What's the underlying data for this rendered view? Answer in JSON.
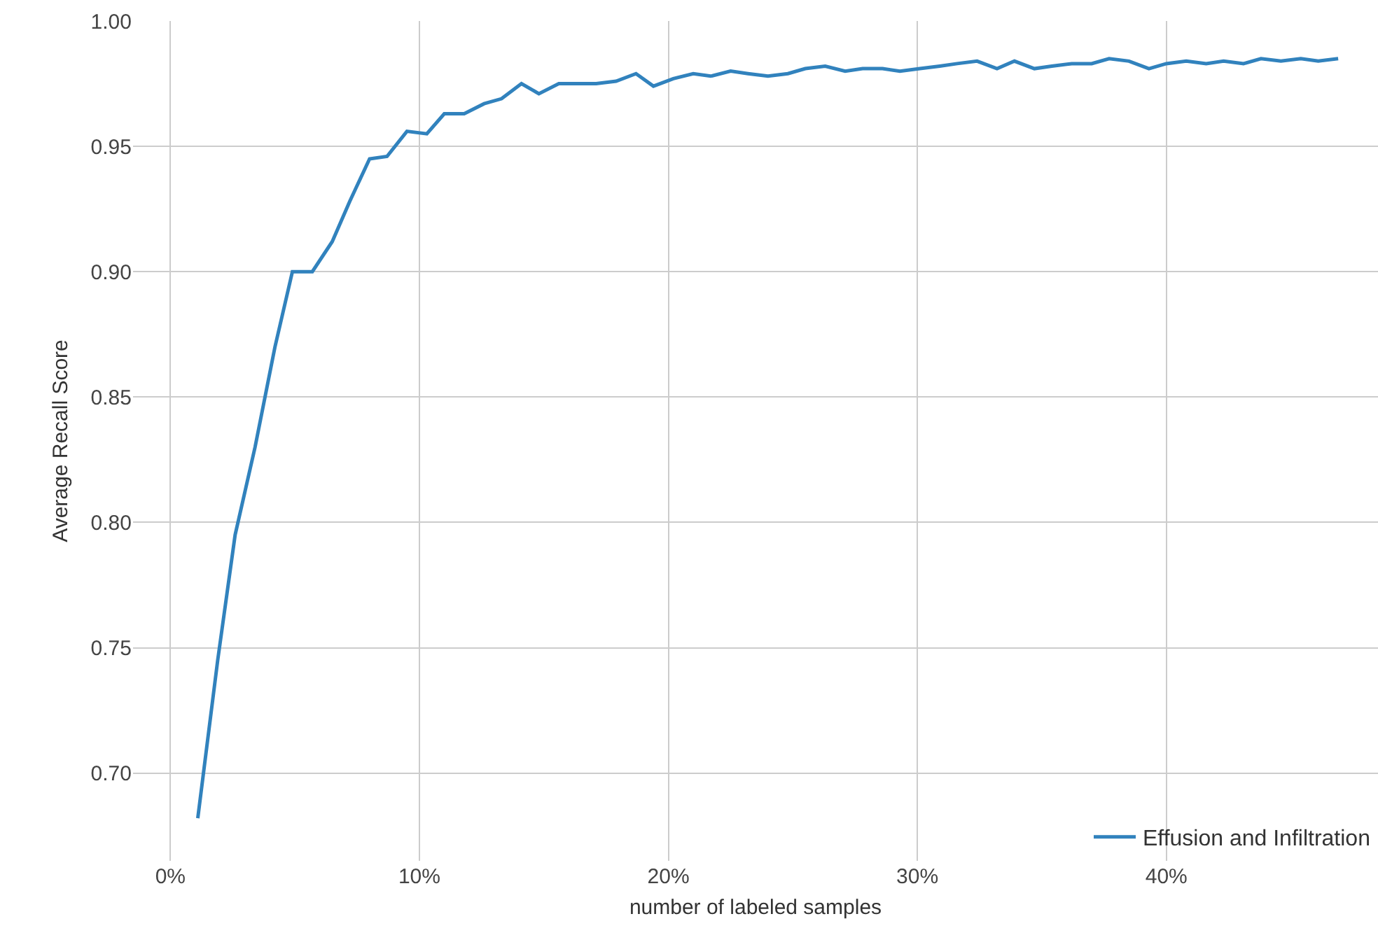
{
  "chart_data": {
    "type": "line",
    "xlabel": "number of labeled samples",
    "ylabel": "Average Recall Score",
    "x": [
      1.1,
      1.9,
      2.6,
      3.4,
      4.2,
      4.9,
      5.7,
      6.5,
      7.2,
      8.0,
      8.7,
      9.5,
      10.3,
      11.0,
      11.8,
      12.6,
      13.3,
      14.1,
      14.8,
      15.6,
      16.4,
      17.1,
      17.9,
      18.7,
      19.4,
      20.2,
      21.0,
      21.7,
      22.5,
      23.2,
      24.0,
      24.8,
      25.5,
      26.3,
      27.1,
      27.8,
      28.6,
      29.3,
      30.1,
      30.9,
      31.6,
      32.4,
      33.2,
      33.9,
      34.7,
      35.4,
      36.2,
      37.0,
      37.7,
      38.5,
      39.3,
      40.0,
      40.8,
      41.6,
      42.3,
      43.1,
      43.8,
      44.6,
      45.4,
      46.1,
      46.9
    ],
    "series": [
      {
        "name": "Effusion and Infiltration",
        "color": "#3182bd",
        "values": [
          0.682,
          0.745,
          0.795,
          0.83,
          0.87,
          0.9,
          0.9,
          0.912,
          0.928,
          0.945,
          0.946,
          0.956,
          0.955,
          0.963,
          0.963,
          0.967,
          0.969,
          0.975,
          0.971,
          0.975,
          0.975,
          0.975,
          0.976,
          0.979,
          0.974,
          0.977,
          0.979,
          0.978,
          0.98,
          0.979,
          0.978,
          0.979,
          0.981,
          0.982,
          0.98,
          0.981,
          0.981,
          0.98,
          0.981,
          0.982,
          0.983,
          0.984,
          0.981,
          0.984,
          0.981,
          0.982,
          0.983,
          0.983,
          0.985,
          0.984,
          0.981,
          0.983,
          0.984,
          0.983,
          0.984,
          0.983,
          0.985,
          0.984,
          0.985,
          0.984,
          0.985
        ]
      }
    ],
    "xlim": [
      -1.5,
      48.5
    ],
    "xticks": [
      {
        "value": 0,
        "label": "0%"
      },
      {
        "value": 10,
        "label": "10%"
      },
      {
        "value": 20,
        "label": "20%"
      },
      {
        "value": 30,
        "label": "30%"
      },
      {
        "value": 40,
        "label": "40%"
      }
    ],
    "ylim": [
      0.665,
      1.0
    ],
    "yticks": [
      {
        "value": 0.7,
        "label": "0.70"
      },
      {
        "value": 0.75,
        "label": "0.75"
      },
      {
        "value": 0.8,
        "label": "0.80"
      },
      {
        "value": 0.85,
        "label": "0.85"
      },
      {
        "value": 0.9,
        "label": "0.90"
      },
      {
        "value": 0.95,
        "label": "0.95"
      },
      {
        "value": 1.0,
        "label": "1.00"
      }
    ],
    "grid": true,
    "legend": "bottom right",
    "marker": "none",
    "line_style": "solid"
  }
}
